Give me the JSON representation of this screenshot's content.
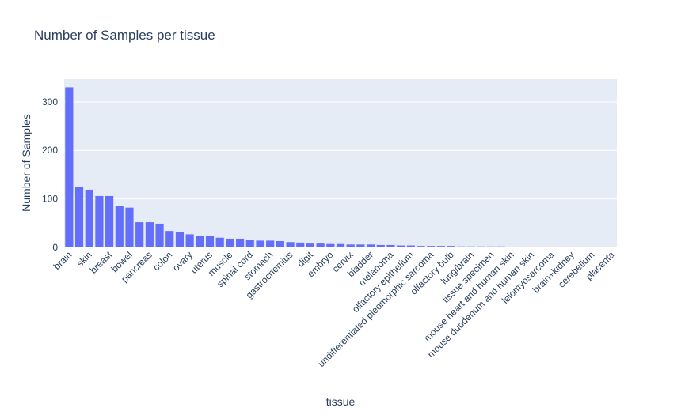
{
  "chart_data": {
    "type": "bar",
    "title": "Number of Samples per tissue",
    "x_label": "tissue",
    "y_label": "Number of Samples",
    "categories": [
      "brain",
      null,
      "skin",
      null,
      "breast",
      null,
      "bowel",
      null,
      "pancreas",
      null,
      "colon",
      null,
      "ovary",
      null,
      "uterus",
      null,
      "muscle",
      null,
      "spinal cord",
      null,
      "stomach",
      null,
      "gastrocnemius",
      null,
      "digit",
      null,
      "embryo",
      null,
      "cervix",
      null,
      "bladder",
      null,
      "melanoma",
      null,
      "olfactory epithelium",
      null,
      "undifferentiated pleomorphic sarcoma",
      null,
      "olfactory bulb",
      null,
      "lung/brain",
      null,
      "tissue specimen",
      null,
      "mouse heart and human skin",
      null,
      "mouse duodenum and human skin",
      null,
      "leiomyosarcoma",
      null,
      "brain+kidney",
      null,
      "cerebellum",
      null,
      "placenta"
    ],
    "values": [
      330,
      124,
      119,
      106,
      106,
      85,
      82,
      52,
      52,
      49,
      34,
      31,
      27,
      24,
      24,
      20,
      18,
      18,
      16,
      14,
      14,
      13,
      11,
      10,
      8,
      8,
      7,
      7,
      6,
      6,
      6,
      5,
      5,
      4,
      4,
      3,
      3,
      3,
      3,
      2,
      2,
      2,
      2,
      2,
      1,
      1,
      1,
      1,
      1,
      1,
      1,
      1,
      1,
      1,
      1
    ],
    "color": "#636efa",
    "ylim": [
      0,
      347
    ],
    "yticks": [
      0,
      100,
      200,
      300
    ],
    "grid": true
  }
}
